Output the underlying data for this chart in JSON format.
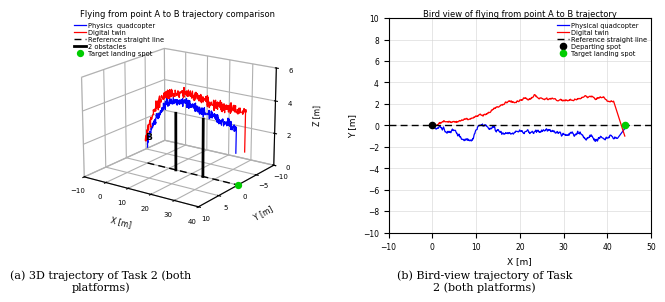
{
  "fig_width": 6.4,
  "fig_height": 2.82,
  "left_title": "Flying from point A to B trajectory comparison",
  "right_title": "Bird view of flying from point A to B trajectory",
  "caption_left": "(a) 3D trajectory of Task 2 (both\nplatforms)",
  "caption_right": "(b) Bird-view trajectory of Task\n2 (both platforms)",
  "blue_color": "#0000FF",
  "red_color": "#FF0000",
  "black_color": "#000000",
  "green_color": "#00CC00",
  "left_legend": [
    "Physics  quadcopter",
    "Digital twin",
    "Reference straight line",
    "2 obstacles",
    "Target landing spot"
  ],
  "right_legend": [
    "Physical quadcopter",
    "Digital twin",
    "Reference straight line",
    "Departing spot",
    "Target landing spot"
  ],
  "left_xlabel": "X [m]",
  "left_ylabel": "Y [m]",
  "left_zlabel": "Z [m]",
  "right_xlabel": "X [m]",
  "right_ylabel": "Y [m]",
  "right_xlim": [
    -10,
    50
  ],
  "right_ylim": [
    -10,
    10
  ]
}
